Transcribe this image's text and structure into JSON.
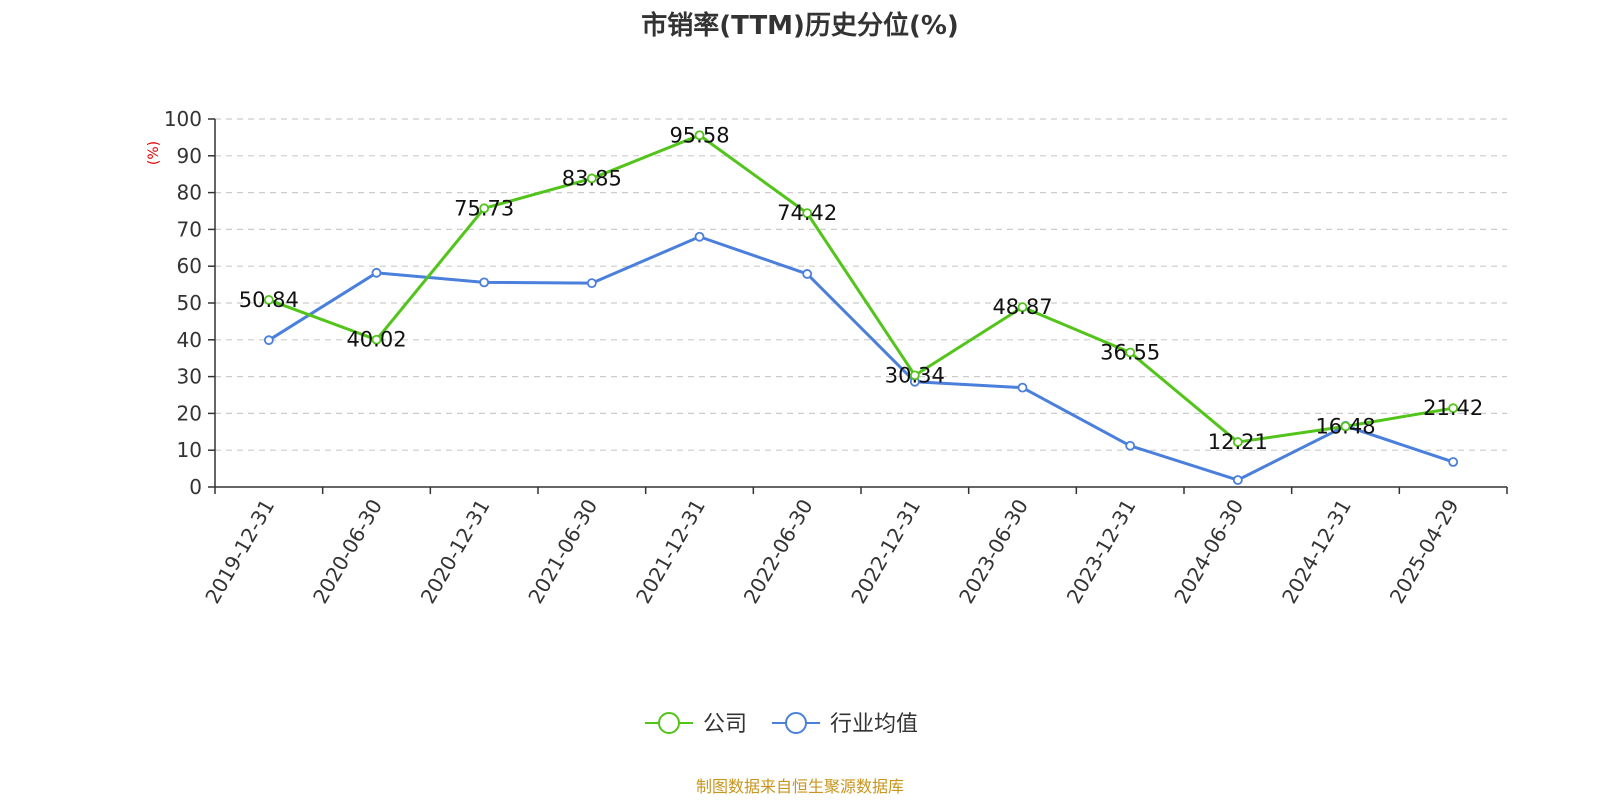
{
  "chart_data": {
    "type": "line",
    "title": "市销率(TTM)历史分位(%)",
    "y_unit": "(%)",
    "ylim": [
      0,
      100
    ],
    "yticks": [
      0,
      10,
      20,
      30,
      40,
      50,
      60,
      70,
      80,
      90,
      100
    ],
    "grid": true,
    "legend_position": "bottom-center",
    "categories": [
      "2019-12-31",
      "2020-06-30",
      "2020-12-31",
      "2021-06-30",
      "2021-12-31",
      "2022-06-30",
      "2022-12-31",
      "2023-06-30",
      "2023-12-31",
      "2024-06-30",
      "2024-12-31",
      "2025-04-29"
    ],
    "series": [
      {
        "name": "公司",
        "color": "#52c41a",
        "show_labels": true,
        "values": [
          50.84,
          40.02,
          75.73,
          83.85,
          95.58,
          74.42,
          30.34,
          48.87,
          36.55,
          12.21,
          16.48,
          21.42
        ],
        "labels": [
          "50.84",
          "40.02",
          "75.73",
          "83.85",
          "95.58",
          "74.42",
          "30.34",
          "48.87",
          "36.55",
          "12.21",
          "16.48",
          "21.42"
        ]
      },
      {
        "name": "行业均值",
        "color": "#4a7fdc",
        "show_labels": false,
        "values": [
          39.9,
          58.2,
          55.6,
          55.4,
          68.0,
          57.9,
          28.6,
          27.0,
          11.2,
          1.9,
          16.6,
          6.8
        ]
      }
    ],
    "source": "制图数据来自恒生聚源数据库"
  }
}
